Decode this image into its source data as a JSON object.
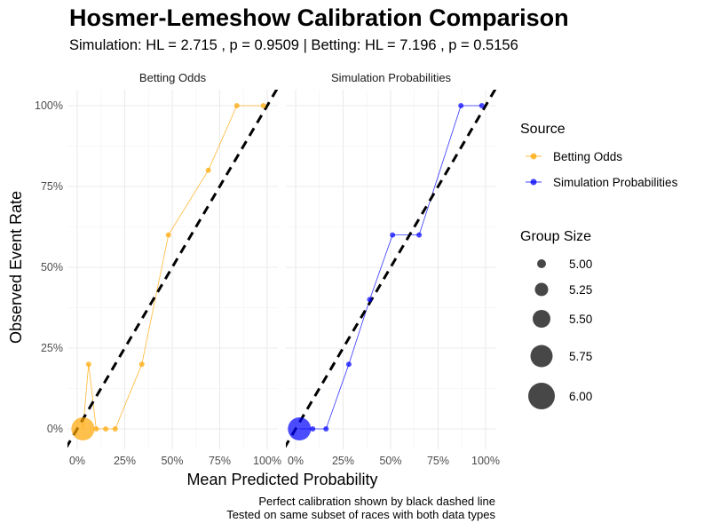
{
  "title": "Hosmer-Lemeshow Calibration Comparison",
  "subtitle": "Simulation: HL = 2.715 , p = 0.9509 | Betting: HL = 7.196 , p = 0.5156",
  "caption": {
    "line1": "Perfect calibration shown by black dashed line",
    "line2": "Tested on same subset of races with both data types"
  },
  "colors": {
    "betting": "#FFA500",
    "simulation": "#0000FF",
    "size_legend": "#333333",
    "diagonal": "#000000"
  },
  "chart_data": {
    "type": "scatter",
    "title": "Hosmer-Lemeshow Calibration Comparison",
    "xlabel": "Mean Predicted Probability",
    "ylabel": "Observed Event Rate",
    "xlim": [
      0,
      1
    ],
    "ylim": [
      0,
      1
    ],
    "x_ticks": [
      0,
      0.25,
      0.5,
      0.75,
      1
    ],
    "x_tick_labels": [
      "0%",
      "25%",
      "50%",
      "75%",
      "100%"
    ],
    "y_ticks": [
      0,
      0.25,
      0.5,
      0.75,
      1
    ],
    "y_tick_labels": [
      "0%",
      "25%",
      "50%",
      "75%",
      "100%"
    ],
    "facets": [
      {
        "name": "Betting Odds",
        "color_key": "betting",
        "points": [
          {
            "x": 0.03,
            "y": 0.0,
            "size": 6.0
          },
          {
            "x": 0.06,
            "y": 0.2,
            "size": 5.0
          },
          {
            "x": 0.1,
            "y": 0.0,
            "size": 5.0
          },
          {
            "x": 0.15,
            "y": 0.0,
            "size": 5.0
          },
          {
            "x": 0.2,
            "y": 0.0,
            "size": 5.0
          },
          {
            "x": 0.34,
            "y": 0.2,
            "size": 5.0
          },
          {
            "x": 0.48,
            "y": 0.6,
            "size": 5.0
          },
          {
            "x": 0.69,
            "y": 0.8,
            "size": 5.0
          },
          {
            "x": 0.84,
            "y": 1.0,
            "size": 5.0
          },
          {
            "x": 0.98,
            "y": 1.0,
            "size": 5.0
          }
        ]
      },
      {
        "name": "Simulation Probabilities",
        "color_key": "simulation",
        "points": [
          {
            "x": 0.02,
            "y": 0.0,
            "size": 6.0
          },
          {
            "x": 0.09,
            "y": 0.0,
            "size": 5.0
          },
          {
            "x": 0.16,
            "y": 0.0,
            "size": 5.0
          },
          {
            "x": 0.28,
            "y": 0.2,
            "size": 5.0
          },
          {
            "x": 0.39,
            "y": 0.4,
            "size": 5.0
          },
          {
            "x": 0.51,
            "y": 0.6,
            "size": 5.0
          },
          {
            "x": 0.65,
            "y": 0.6,
            "size": 5.0
          },
          {
            "x": 0.87,
            "y": 1.0,
            "size": 5.0
          },
          {
            "x": 0.98,
            "y": 1.0,
            "size": 5.0
          }
        ]
      }
    ],
    "legend": {
      "source_title": "Source",
      "source_items": [
        {
          "label": "Betting Odds",
          "color_key": "betting"
        },
        {
          "label": "Simulation Probabilities",
          "color_key": "simulation"
        }
      ],
      "size_title": "Group Size",
      "size_values": [
        5.0,
        5.25,
        5.5,
        5.75,
        6.0
      ],
      "size_labels": [
        "5.00",
        "5.25",
        "5.50",
        "5.75",
        "6.00"
      ]
    },
    "reference_line": "y = x (perfect calibration)"
  }
}
